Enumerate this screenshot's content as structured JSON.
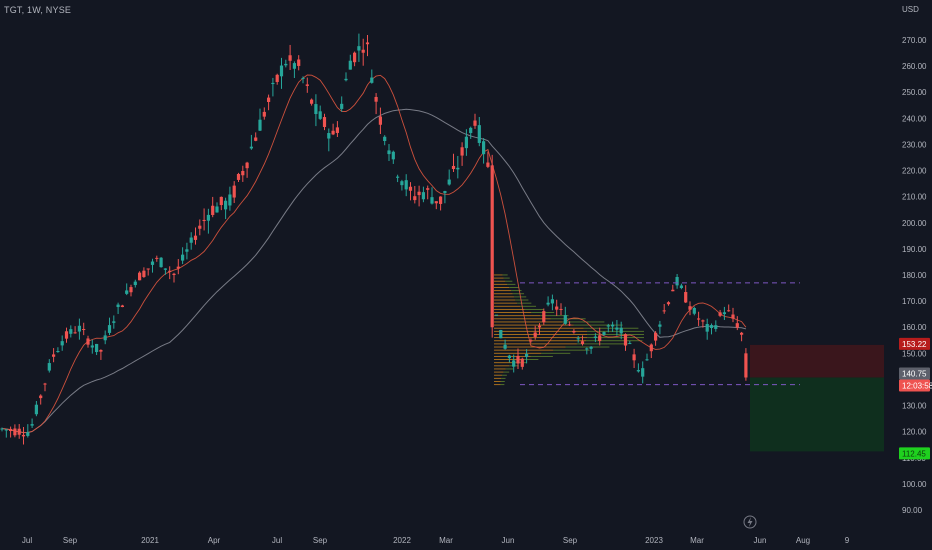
{
  "header": {
    "symbol": "TGT, 1W, NYSE",
    "currency": "USD"
  },
  "colors": {
    "background": "#131722",
    "up": "#26a69a",
    "down": "#ef5350",
    "short_ma": "#e0573f",
    "long_ma": "#787b86",
    "range_line": "#7e57c2",
    "stop_zone": "#3a161c",
    "target_zone": "#0f2f1e",
    "profile_orange": "#e8941a",
    "profile_green": "#6d9a2f"
  },
  "price_axis": {
    "ticks": [
      "270.00",
      "260.00",
      "250.00",
      "240.00",
      "230.00",
      "220.00",
      "210.00",
      "200.00",
      "190.00",
      "180.00",
      "170.00",
      "160.00",
      "150.00",
      "140.00",
      "130.00",
      "120.00",
      "110.00",
      "100.00",
      "90.00"
    ],
    "labels": {
      "stop_price": "153.22",
      "last_price": "140.75",
      "countdown": "12:03:58",
      "target_price": "112.45"
    }
  },
  "time_axis": {
    "labels": [
      "Jul",
      "Sep",
      "2021",
      "Apr",
      "Jul",
      "Sep",
      "2022",
      "Mar",
      "Jun",
      "Sep",
      "2023",
      "Mar",
      "Jun",
      "Aug",
      "9"
    ]
  },
  "chart_data": {
    "type": "candlestick",
    "title": "TGT, 1W, NYSE",
    "ylabel": "USD",
    "ylim": [
      85,
      275
    ],
    "x_range": [
      "2020-06",
      "2023-10"
    ],
    "scale": "linear",
    "grid": false,
    "series_approx_close": [
      {
        "x": "2020-07",
        "close": 120
      },
      {
        "x": "2020-09",
        "close": 155
      },
      {
        "x": "2020-11",
        "close": 178
      },
      {
        "x": "2021-01",
        "close": 195
      },
      {
        "x": "2021-03",
        "close": 196
      },
      {
        "x": "2021-05",
        "close": 228
      },
      {
        "x": "2021-07",
        "close": 258
      },
      {
        "x": "2021-09",
        "close": 235
      },
      {
        "x": "2021-11",
        "close": 262
      },
      {
        "x": "2022-01",
        "close": 220
      },
      {
        "x": "2022-03",
        "close": 215
      },
      {
        "x": "2022-04",
        "close": 240
      },
      {
        "x": "2022-05",
        "close": 158
      },
      {
        "x": "2022-06",
        "close": 145
      },
      {
        "x": "2022-08",
        "close": 168
      },
      {
        "x": "2022-10",
        "close": 158
      },
      {
        "x": "2022-12",
        "close": 149
      },
      {
        "x": "2023-02",
        "close": 172
      },
      {
        "x": "2023-04",
        "close": 160
      },
      {
        "x": "2023-05",
        "close": 140.75
      }
    ],
    "annotations": {
      "range_high": 177,
      "range_low": 138,
      "stop_level": 153.22,
      "entry_level": 140.75,
      "target_level": 112.45
    }
  }
}
